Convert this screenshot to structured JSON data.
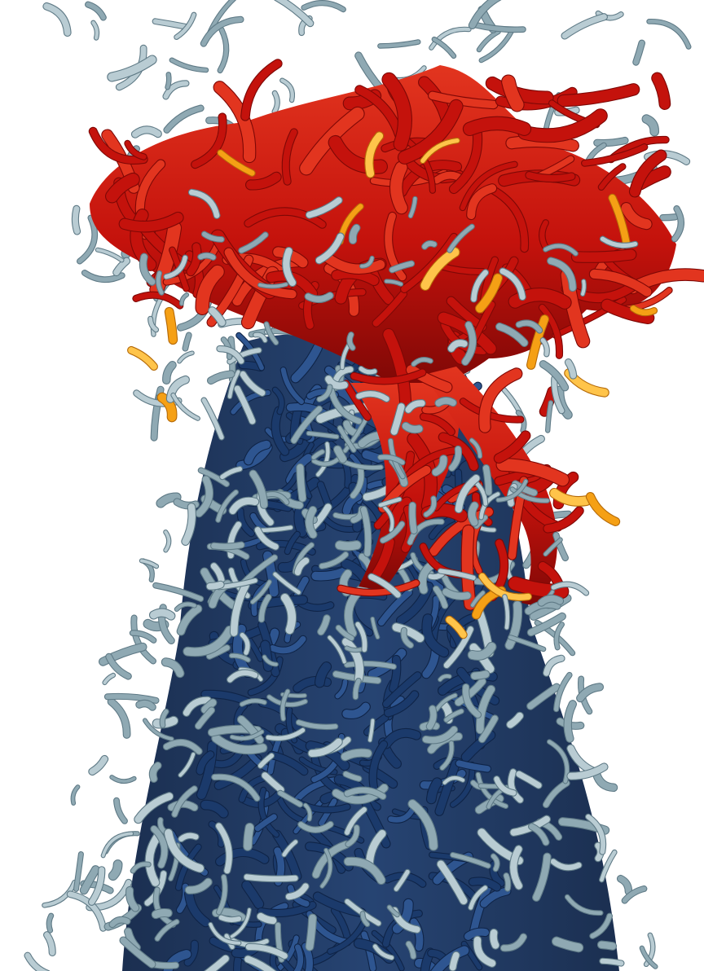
{
  "image": {
    "background_color": "#ffffff",
    "palette": {
      "light_structures": "#8fa9b3",
      "light_highlight": "#b9ccd3",
      "light_shadow": "#5f7a86",
      "dark_core": "#1b3a6b",
      "dark_core_shadow": "#0f2447",
      "dark_core_highlight": "#2e5590",
      "red_structures": "#c4120c",
      "red_shadow": "#7e0806",
      "red_highlight": "#e2351f",
      "orange_structures": "#f5a015",
      "orange_highlight": "#ffc44a"
    }
  }
}
